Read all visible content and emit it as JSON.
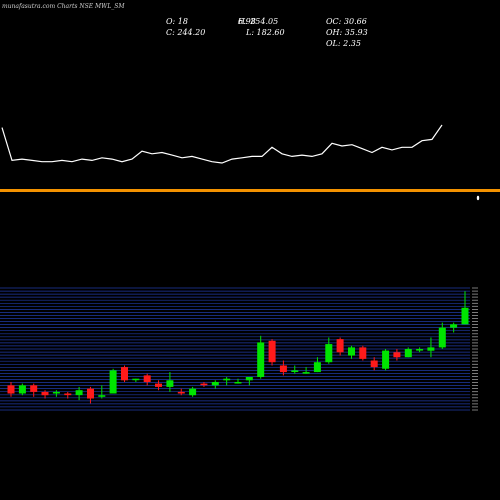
{
  "header": {
    "watermark": "munafasutra.com Charts NSE MWL_SM",
    "o": "O: 18",
    "h": "H: 254.05",
    "c": "C: 244.20",
    "l": "L: 182.60",
    "oc": "OC: 30.66",
    "oh": "OH: 35.93",
    "ol": "OL: 2.35",
    "overlap_fragment": "6.98"
  },
  "colors": {
    "background": "#000000",
    "line": "#ffffff",
    "orange_band": "#f39200",
    "up": "#00e400",
    "down": "#ff1a1a",
    "grid": "#1f3aa6"
  },
  "chart_data": [
    {
      "type": "line",
      "series": [
        {
          "values": [
            230,
            205,
            206,
            205,
            204,
            204,
            205,
            204,
            206,
            205,
            207,
            206,
            204,
            206,
            212,
            210,
            211,
            209,
            207,
            208,
            206,
            204,
            203,
            206,
            207,
            208,
            208,
            215,
            210,
            208,
            209,
            208,
            210,
            218,
            216,
            217,
            214,
            211,
            215,
            213,
            215,
            215,
            220,
            221,
            232
          ]
        }
      ]
    },
    {
      "type": "bar",
      "series": [
        {
          "values": [
            1
          ]
        }
      ]
    },
    {
      "type": "candlestick",
      "ylim": [
        182,
        256
      ],
      "series": [
        {
          "name": "",
          "ohlc": [
            [
              197,
              192,
              199,
              190
            ],
            [
              192,
              197,
              198,
              191
            ],
            [
              197,
              193,
              198,
              190
            ],
            [
              193,
              191,
              194,
              189
            ],
            [
              192,
              193,
              194,
              190
            ],
            [
              192,
              191,
              193,
              189
            ],
            [
              191,
              194,
              196,
              188
            ],
            [
              195,
              189,
              196,
              186
            ],
            [
              190,
              191,
              197,
              189
            ],
            [
              192,
              206,
              207,
              192
            ],
            [
              208,
              200,
              209,
              199
            ],
            [
              201,
              201,
              201,
              199
            ],
            [
              203,
              199,
              204,
              197
            ],
            [
              198,
              196,
              200,
              194
            ],
            [
              196,
              200,
              205,
              193
            ],
            [
              193,
              192,
              195,
              191
            ],
            [
              191,
              195,
              196,
              190
            ],
            [
              198,
              197,
              199,
              196
            ],
            [
              197,
              199,
              200,
              195
            ],
            [
              200,
              201,
              202,
              197
            ],
            [
              199,
              199,
              201,
              198
            ],
            [
              200,
              202,
              202,
              197
            ],
            [
              202,
              223,
              227,
              201
            ],
            [
              224,
              211,
              225,
              209
            ],
            [
              209,
              205,
              212,
              203
            ],
            [
              205,
              206,
              209,
              204
            ],
            [
              204,
              205,
              208,
              204
            ],
            [
              205,
              211,
              214,
              205
            ],
            [
              211,
              222,
              226,
              210
            ],
            [
              225,
              217,
              226,
              215
            ],
            [
              215,
              220,
              221,
              213
            ],
            [
              220,
              213,
              221,
              212
            ],
            [
              212,
              208,
              214,
              206
            ],
            [
              207,
              218,
              219,
              206
            ],
            [
              217,
              214,
              219,
              212
            ],
            [
              214,
              219,
              220,
              214
            ],
            [
              218,
              219,
              220,
              217
            ],
            [
              218,
              220,
              226,
              214
            ],
            [
              220,
              232,
              235,
              219
            ],
            [
              232,
              234,
              235,
              229
            ],
            [
              234,
              244,
              254,
              234
            ]
          ]
        }
      ]
    }
  ]
}
